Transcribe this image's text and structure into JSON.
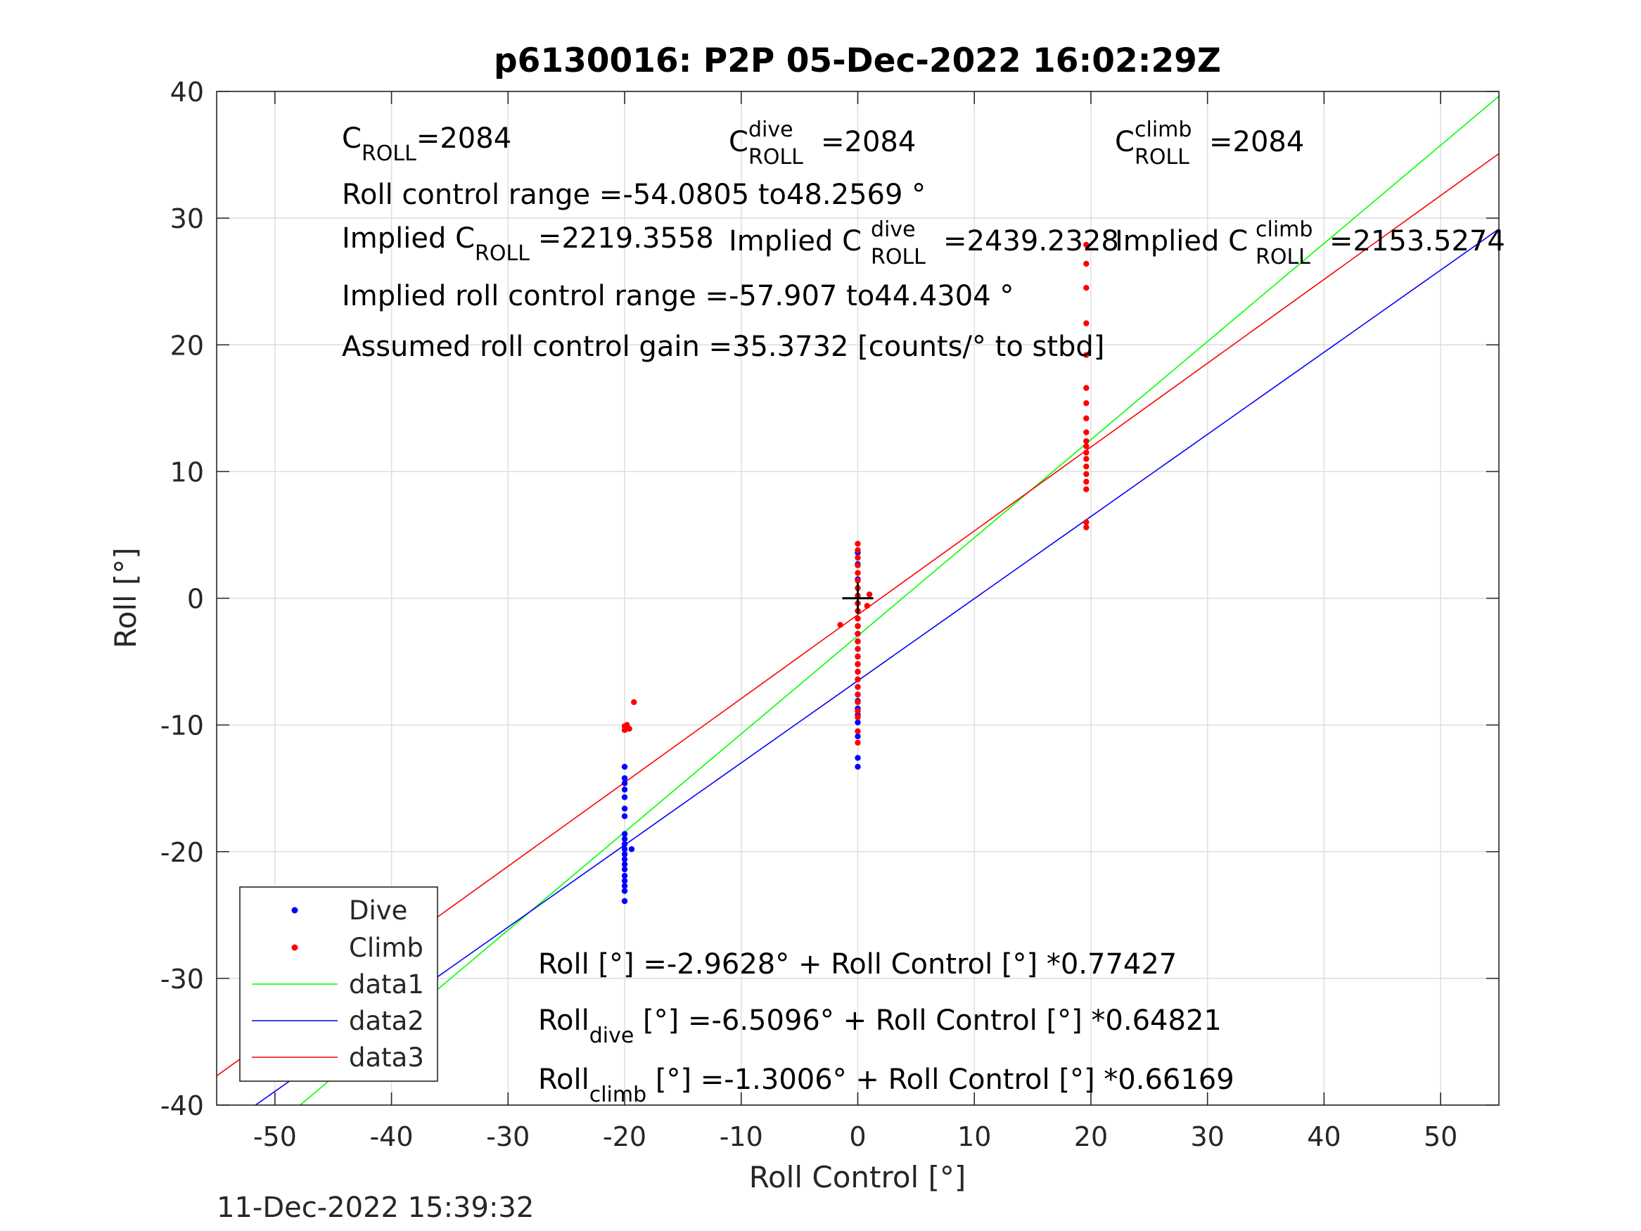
{
  "chart_data": {
    "type": "scatter",
    "title": "p6130016: P2P 05-Dec-2022 16:02:29Z",
    "xlabel": "Roll Control [°]",
    "ylabel": "Roll [°]",
    "xlim": [
      -55,
      55
    ],
    "ylim": [
      -40,
      40
    ],
    "xticks": [
      -50,
      -40,
      -30,
      -20,
      -10,
      0,
      10,
      20,
      30,
      40,
      50
    ],
    "yticks": [
      -40,
      -30,
      -20,
      -10,
      0,
      10,
      20,
      30,
      40
    ],
    "grid": true,
    "legend_position": "bottom-left",
    "footer_timestamp": "11-Dec-2022 15:39:32",
    "annotations": {
      "c_roll": {
        "base": "C",
        "sub": "ROLL",
        "value": "=2084"
      },
      "c_roll_dive": {
        "base": "C",
        "sup": "dive",
        "sub": "ROLL",
        "value": "=2084"
      },
      "c_roll_climb": {
        "base": "C",
        "sup": "climb",
        "sub": "ROLL",
        "value": "=2084"
      },
      "range": "Roll control range =-54.0805 to48.2569 °",
      "implied_c": {
        "prefix": "Implied C",
        "sub": "ROLL",
        "value": "=2219.3558"
      },
      "implied_c_dive": {
        "prefix": "Implied C",
        "sup": "dive",
        "sub": "ROLL",
        "value": "=2439.2328"
      },
      "implied_c_climb": {
        "prefix": "Implied C",
        "sup": "climb",
        "sub": "ROLL",
        "value": "=2153.5274"
      },
      "implied_range": "Implied roll control range =-57.907 to44.4304 °",
      "gain": "Assumed roll control gain =35.3732 [counts/° to stbd]",
      "fit_all": "Roll [°] =-2.9628° + Roll Control [°] *0.77427",
      "fit_dive": {
        "base": "Roll",
        "sub": "dive",
        "rest": " [°] =-6.5096° + Roll Control [°] *0.64821"
      },
      "fit_climb": {
        "base": "Roll",
        "sub": "climb",
        "rest": " [°] =-1.3006° + Roll Control [°] *0.66169"
      }
    },
    "center_marker": {
      "x": 0,
      "y": 0,
      "color": "#000000"
    },
    "series": [
      {
        "name": "Dive",
        "kind": "scatter",
        "color": "#0000ff",
        "points": [
          [
            -20,
            -13.3
          ],
          [
            -20,
            -14.2
          ],
          [
            -20,
            -14.6
          ],
          [
            -20,
            -15.1
          ],
          [
            -20,
            -15.7
          ],
          [
            -20,
            -16.6
          ],
          [
            -20,
            -17.2
          ],
          [
            -20,
            -18.6
          ],
          [
            -20,
            -19.0
          ],
          [
            -20,
            -19.4
          ],
          [
            -20,
            -19.8
          ],
          [
            -20,
            -20.2
          ],
          [
            -20,
            -20.6
          ],
          [
            -20,
            -21.0
          ],
          [
            -20,
            -21.4
          ],
          [
            -20,
            -21.9
          ],
          [
            -20,
            -22.3
          ],
          [
            -20,
            -22.7
          ],
          [
            -20,
            -23.1
          ],
          [
            -20,
            -23.9
          ],
          [
            -19.4,
            -19.8
          ],
          [
            0,
            3.6
          ],
          [
            0,
            2.7
          ],
          [
            0,
            1.5
          ],
          [
            0,
            0.8
          ],
          [
            0,
            0.2
          ],
          [
            0,
            -0.4
          ],
          [
            0,
            -1.0
          ],
          [
            0,
            -1.6
          ],
          [
            0,
            -2.2
          ],
          [
            0,
            -2.8
          ],
          [
            0,
            -3.4
          ],
          [
            0,
            -4.0
          ],
          [
            0,
            -4.6
          ],
          [
            0,
            -5.2
          ],
          [
            0,
            -5.8
          ],
          [
            0,
            -6.4
          ],
          [
            0,
            -7.0
          ],
          [
            0,
            -7.6
          ],
          [
            0,
            -8.1
          ],
          [
            0,
            -8.7
          ],
          [
            0,
            -9.2
          ],
          [
            0,
            -9.8
          ],
          [
            0,
            -10.9
          ],
          [
            0,
            -12.6
          ],
          [
            0,
            -13.3
          ]
        ]
      },
      {
        "name": "Climb",
        "kind": "scatter",
        "color": "#ff0000",
        "points": [
          [
            -20,
            -10.1
          ],
          [
            -20,
            -10.4
          ],
          [
            -19.8,
            -10.0
          ],
          [
            -19.6,
            -10.3
          ],
          [
            -19.2,
            -8.2
          ],
          [
            0,
            4.3
          ],
          [
            0,
            3.8
          ],
          [
            0,
            3.2
          ],
          [
            0,
            2.6
          ],
          [
            0,
            2.0
          ],
          [
            0,
            1.4
          ],
          [
            0,
            0.8
          ],
          [
            0,
            0.2
          ],
          [
            0,
            -0.4
          ],
          [
            0,
            -1.0
          ],
          [
            0,
            -1.6
          ],
          [
            0,
            -2.2
          ],
          [
            0,
            -2.8
          ],
          [
            0,
            -3.4
          ],
          [
            0,
            -4.0
          ],
          [
            0,
            -4.6
          ],
          [
            0,
            -5.2
          ],
          [
            0,
            -5.8
          ],
          [
            0,
            -6.4
          ],
          [
            0,
            -7.0
          ],
          [
            0,
            -7.6
          ],
          [
            0,
            -8.2
          ],
          [
            0,
            -8.9
          ],
          [
            0,
            -9.4
          ],
          [
            0,
            -10.5
          ],
          [
            0,
            -11.4
          ],
          [
            -1.5,
            -2.1
          ],
          [
            0.8,
            -0.6
          ],
          [
            1.0,
            0.3
          ],
          [
            19.6,
            27.9
          ],
          [
            19.6,
            26.4
          ],
          [
            19.6,
            24.5
          ],
          [
            19.6,
            21.7
          ],
          [
            19.6,
            19.2
          ],
          [
            19.6,
            16.6
          ],
          [
            19.6,
            15.4
          ],
          [
            19.6,
            14.2
          ],
          [
            19.6,
            13.1
          ],
          [
            19.6,
            12.4
          ],
          [
            19.6,
            12.0
          ],
          [
            19.6,
            11.5
          ],
          [
            19.6,
            11.0
          ],
          [
            19.6,
            10.4
          ],
          [
            19.6,
            9.8
          ],
          [
            19.6,
            9.2
          ],
          [
            19.6,
            8.6
          ],
          [
            19.6,
            6.0
          ],
          [
            19.6,
            5.6
          ]
        ]
      },
      {
        "name": "data1",
        "kind": "line",
        "color": "#00ff00",
        "intercept": -2.9628,
        "slope": 0.77427
      },
      {
        "name": "data2",
        "kind": "line",
        "color": "#0000ff",
        "intercept": -6.5096,
        "slope": 0.64821
      },
      {
        "name": "data3",
        "kind": "line",
        "color": "#ff0000",
        "intercept": -1.3006,
        "slope": 0.66169
      }
    ]
  }
}
